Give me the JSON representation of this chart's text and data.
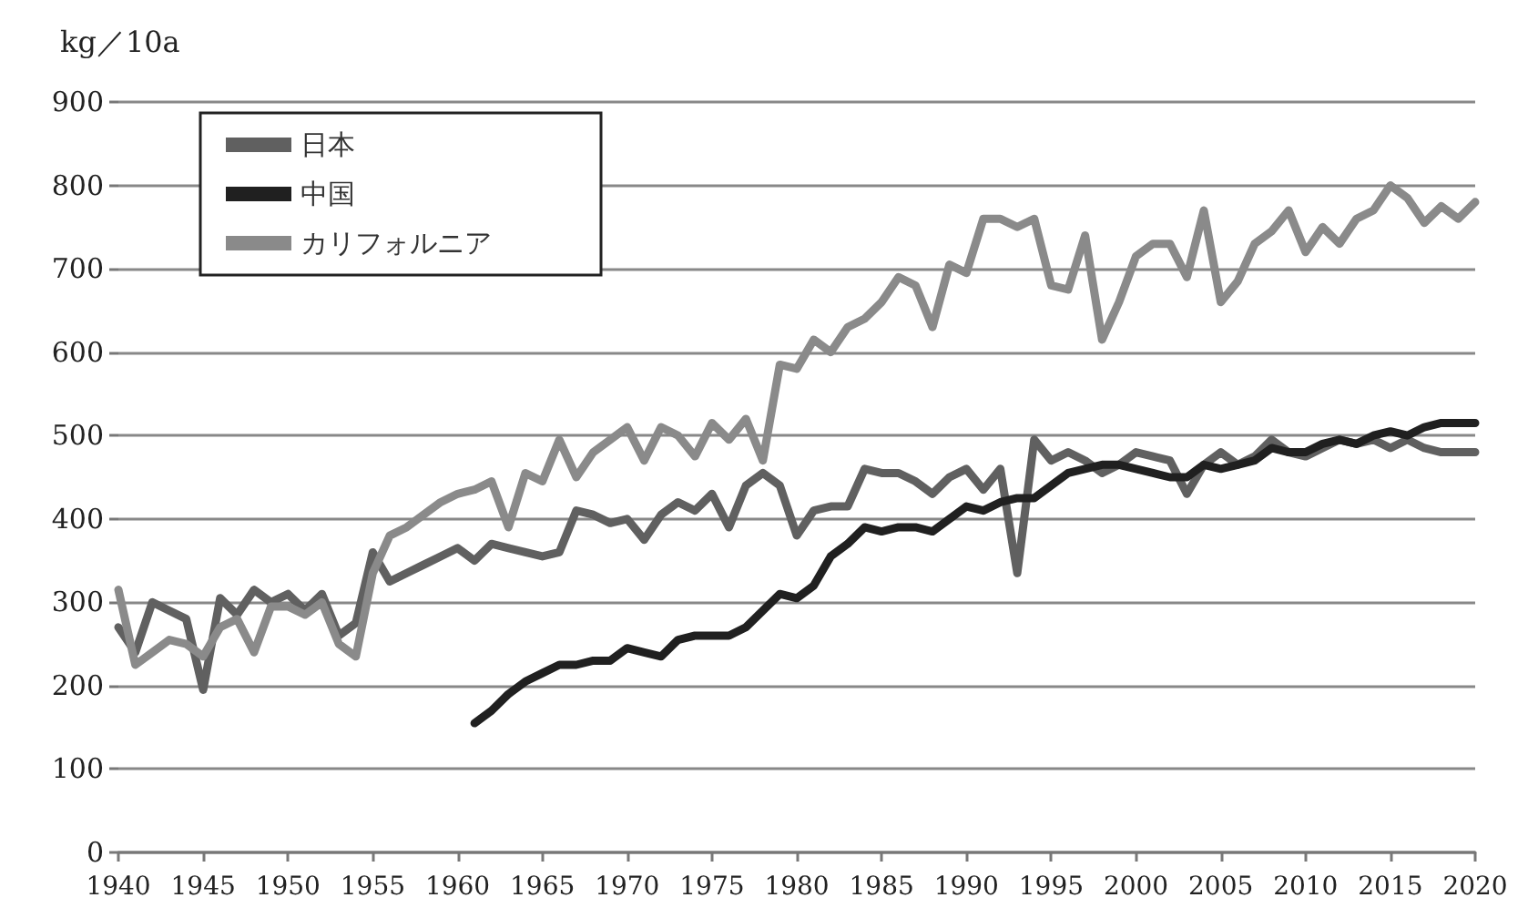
{
  "chart_data": {
    "type": "line",
    "ylabel": "kg／10a",
    "xlim": [
      1940,
      2020
    ],
    "xticks": [
      1940,
      1945,
      1950,
      1955,
      1960,
      1965,
      1970,
      1975,
      1980,
      1985,
      1990,
      1995,
      2000,
      2005,
      2010,
      2015,
      2020
    ],
    "ylim": [
      0,
      900
    ],
    "yticks": [
      0,
      100,
      200,
      300,
      400,
      500,
      600,
      700,
      800,
      900
    ],
    "grid": "y",
    "legend": "top left",
    "marker": "none",
    "line_style": "solid",
    "series": [
      {
        "name": "日本",
        "color": "#606060",
        "x": [
          1940,
          1941,
          1942,
          1943,
          1944,
          1945,
          1946,
          1947,
          1948,
          1949,
          1950,
          1951,
          1952,
          1953,
          1954,
          1955,
          1956,
          1957,
          1958,
          1959,
          1960,
          1961,
          1962,
          1963,
          1964,
          1965,
          1966,
          1967,
          1968,
          1969,
          1970,
          1971,
          1972,
          1973,
          1974,
          1975,
          1976,
          1977,
          1978,
          1979,
          1980,
          1981,
          1982,
          1983,
          1984,
          1985,
          1986,
          1987,
          1988,
          1989,
          1990,
          1991,
          1992,
          1993,
          1994,
          1995,
          1996,
          1997,
          1998,
          1999,
          2000,
          2001,
          2002,
          2003,
          2004,
          2005,
          2006,
          2007,
          2008,
          2009,
          2010,
          2011,
          2012,
          2013,
          2014,
          2015,
          2016,
          2017,
          2018,
          2019,
          2020
        ],
        "values": [
          270,
          240,
          300,
          290,
          280,
          195,
          305,
          285,
          315,
          300,
          310,
          290,
          310,
          260,
          275,
          360,
          325,
          335,
          345,
          355,
          365,
          350,
          370,
          365,
          360,
          355,
          360,
          410,
          405,
          395,
          400,
          375,
          405,
          420,
          410,
          430,
          390,
          440,
          455,
          440,
          380,
          410,
          415,
          415,
          460,
          455,
          455,
          445,
          430,
          450,
          460,
          435,
          460,
          335,
          495,
          470,
          480,
          470,
          455,
          465,
          480,
          475,
          470,
          430,
          465,
          480,
          465,
          475,
          495,
          480,
          475,
          485,
          495,
          490,
          495,
          485,
          495,
          485,
          480,
          480,
          480
        ]
      },
      {
        "name": "中国",
        "color": "#202020",
        "x": [
          1961,
          1962,
          1963,
          1964,
          1965,
          1966,
          1967,
          1968,
          1969,
          1970,
          1971,
          1972,
          1973,
          1974,
          1975,
          1976,
          1977,
          1978,
          1979,
          1980,
          1981,
          1982,
          1983,
          1984,
          1985,
          1986,
          1987,
          1988,
          1989,
          1990,
          1991,
          1992,
          1993,
          1994,
          1995,
          1996,
          1997,
          1998,
          1999,
          2000,
          2001,
          2002,
          2003,
          2004,
          2005,
          2006,
          2007,
          2008,
          2009,
          2010,
          2011,
          2012,
          2013,
          2014,
          2015,
          2016,
          2017,
          2018,
          2019,
          2020
        ],
        "values": [
          155,
          170,
          190,
          205,
          215,
          225,
          225,
          230,
          230,
          245,
          240,
          235,
          255,
          260,
          260,
          260,
          270,
          290,
          310,
          305,
          320,
          355,
          370,
          390,
          385,
          390,
          390,
          385,
          400,
          415,
          410,
          420,
          425,
          425,
          440,
          455,
          460,
          465,
          465,
          460,
          455,
          450,
          450,
          465,
          460,
          465,
          470,
          485,
          480,
          480,
          490,
          495,
          490,
          500,
          505,
          500,
          510,
          515,
          515,
          515
        ]
      },
      {
        "name": "カリフォルニア",
        "color": "#8a8a8a",
        "x": [
          1940,
          1941,
          1942,
          1943,
          1944,
          1945,
          1946,
          1947,
          1948,
          1949,
          1950,
          1951,
          1952,
          1953,
          1954,
          1955,
          1956,
          1957,
          1958,
          1959,
          1960,
          1961,
          1962,
          1963,
          1964,
          1965,
          1966,
          1967,
          1968,
          1969,
          1970,
          1971,
          1972,
          1973,
          1974,
          1975,
          1976,
          1977,
          1978,
          1979,
          1980,
          1981,
          1982,
          1983,
          1984,
          1985,
          1986,
          1987,
          1988,
          1989,
          1990,
          1991,
          1992,
          1993,
          1994,
          1995,
          1996,
          1997,
          1998,
          1999,
          2000,
          2001,
          2002,
          2003,
          2004,
          2005,
          2006,
          2007,
          2008,
          2009,
          2010,
          2011,
          2012,
          2013,
          2014,
          2015,
          2016,
          2017,
          2018,
          2019,
          2020
        ],
        "values": [
          315,
          225,
          240,
          255,
          250,
          235,
          270,
          280,
          240,
          295,
          295,
          285,
          300,
          250,
          235,
          335,
          380,
          390,
          405,
          420,
          430,
          435,
          445,
          390,
          455,
          445,
          495,
          450,
          480,
          495,
          510,
          470,
          510,
          500,
          475,
          515,
          495,
          520,
          470,
          585,
          580,
          615,
          600,
          630,
          640,
          660,
          690,
          680,
          630,
          705,
          695,
          760,
          760,
          750,
          760,
          680,
          675,
          740,
          615,
          660,
          715,
          730,
          730,
          690,
          770,
          660,
          685,
          730,
          745,
          770,
          720,
          750,
          730,
          760,
          770,
          800,
          785,
          755,
          775,
          760,
          780
        ]
      }
    ]
  }
}
